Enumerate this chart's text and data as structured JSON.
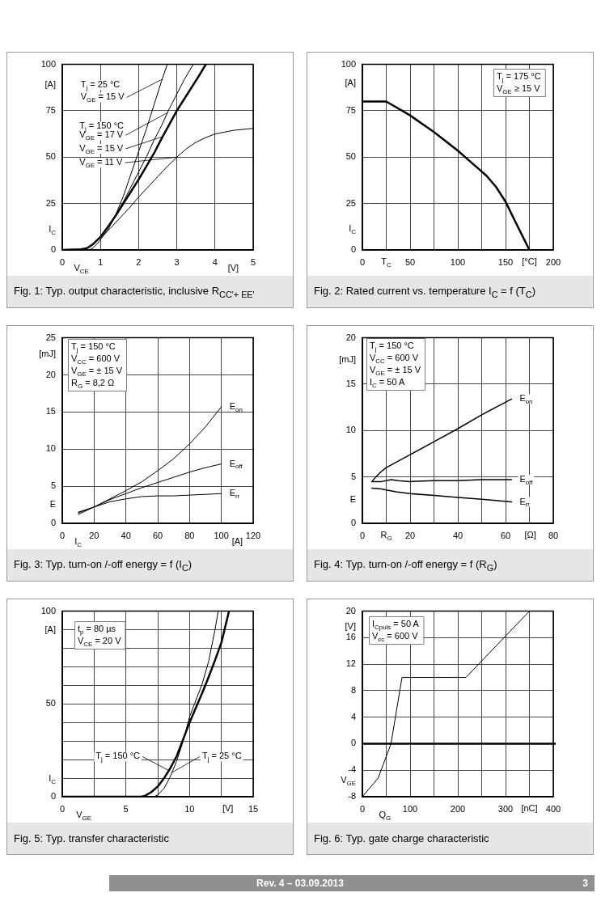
{
  "chart_data": [
    {
      "type": "line",
      "title": "Fig. 1: Typ. output characteristic, inclusive R$_{CC'+ EE'}$",
      "xlabel": "V$_{CE}$",
      "ylabel": "I$_{C}$",
      "xlim": [
        0,
        5
      ],
      "xticks": [
        0,
        1,
        2,
        3,
        4,
        5
      ],
      "ylim": [
        0,
        100
      ],
      "yticks": [
        0,
        25,
        50,
        75,
        100
      ],
      "grid": true,
      "annotations": [
        "[V]",
        "[A]",
        "T$_{j}$ = 25 °C",
        {
          "text": "V$_{GE}$ = 15 V",
          "x": 2.62,
          "y": 92
        },
        "T$_{j}$ = 150 °C",
        {
          "text": "V$_{GE}$ = 17 V",
          "x": 2.76,
          "y": 74
        },
        {
          "text": "V$_{GE}$ = 15 V",
          "x": 2.62,
          "y": 61
        },
        {
          "text": "V$_{GE}$ = 11 V",
          "x": 3,
          "y": 50
        }
      ],
      "series": [
        {
          "color": "#000000",
          "x": [
            0,
            0.7,
            0.8,
            0.9,
            1,
            1.2,
            1.4,
            1.6,
            1.8,
            2,
            2.2,
            2.4,
            2.6,
            2.75
          ],
          "values": [
            0,
            0,
            1,
            3,
            5.5,
            11,
            19,
            29,
            41,
            53,
            65,
            78,
            91,
            100
          ]
        },
        {
          "color": "#000000",
          "x": [
            0,
            0.5,
            0.65,
            0.8,
            1,
            1.2,
            1.4,
            1.6,
            1.8,
            2,
            2.2,
            2.4,
            2.6,
            2.8,
            3,
            3.2,
            3.43
          ],
          "values": [
            0,
            0.3,
            1,
            3,
            7,
            12.5,
            19,
            26,
            34,
            42,
            50,
            59,
            67,
            76,
            84,
            92,
            100
          ]
        },
        {
          "color": "#000000",
          "x": [
            0,
            0.5,
            0.65,
            0.8,
            1,
            1.2,
            1.4,
            1.6,
            1.8,
            2,
            2.2,
            2.4,
            2.6,
            2.8,
            3,
            3.2,
            3.4,
            3.6,
            3.76
          ],
          "values": [
            0,
            0.3,
            1,
            3,
            7,
            12.5,
            18.5,
            25,
            31.5,
            38,
            45,
            52,
            60,
            67.5,
            75,
            81.5,
            88,
            94.5,
            100
          ]
        },
        {
          "color": "#000000",
          "x": [
            0,
            0.5,
            0.65,
            0.8,
            1,
            1.25,
            1.5,
            1.75,
            2,
            2.25,
            2.5,
            2.75,
            3,
            3.25,
            3.5,
            3.75,
            4,
            4.5,
            5
          ],
          "values": [
            0,
            0.3,
            1,
            3,
            6.5,
            11.5,
            17,
            22.5,
            28.5,
            34,
            39.5,
            45,
            50,
            54.5,
            58,
            60.5,
            62.5,
            64.5,
            65.5
          ]
        }
      ]
    },
    {
      "type": "line",
      "title": "Fig. 2: Rated current vs. temperature I$_{C}$ = f (T$_{C}$)",
      "xlabel": "T$_{C}$",
      "ylabel": "I$_{C}$",
      "xlim": [
        0,
        200
      ],
      "xticks": [
        0,
        {
          "value": 25,
          "label": null
        },
        50,
        {
          "value": 75,
          "label": null
        },
        100,
        {
          "value": 125,
          "label": null
        },
        150,
        {
          "value": 175,
          "label": null
        },
        200
      ],
      "ylim": [
        0,
        100
      ],
      "yticks": [
        0,
        25,
        50,
        75,
        100
      ],
      "grid": true,
      "annotations": [
        "[°C]",
        "[A]",
        "T$_{j}$ = 175 °C",
        "V$_{GE}$ ≥ 15 V"
      ],
      "series": [
        {
          "color": "#000000",
          "x": [
            0,
            25,
            50,
            75,
            100,
            110,
            120,
            130,
            140,
            150,
            160,
            175
          ],
          "values": [
            80,
            80,
            72.5,
            63.5,
            53.5,
            49,
            44.5,
            40,
            34,
            26,
            15.5,
            0
          ]
        }
      ]
    },
    {
      "type": "line",
      "title": "Fig. 3: Typ. turn-on /-off energy = f (I$_{C}$)",
      "xlabel": "I$_{C}$",
      "ylabel": "E",
      "xlim": [
        0,
        120
      ],
      "xticks": [
        0,
        20,
        40,
        60,
        80,
        100,
        120
      ],
      "ylim": [
        0,
        25
      ],
      "yticks": [
        0,
        5,
        10,
        15,
        20,
        25
      ],
      "grid": true,
      "annotations": [
        "[A]",
        "[mJ]",
        "T$_{j}$ = 150 °C",
        "V$_{CC}$ = 600 V",
        "V$_{GE}$ = ± 15 V",
        "R$_{G}$ = 8,2 Ω"
      ],
      "series": [
        {
          "name": "E$_{on}$",
          "color": "#000000",
          "x": [
            10,
            20,
            30,
            40,
            50,
            60,
            70,
            80,
            90,
            100
          ],
          "values": [
            1.2,
            2.2,
            3.3,
            4.4,
            5.6,
            7.1,
            8.7,
            10.7,
            13,
            15.7
          ]
        },
        {
          "name": "E$_{off}$",
          "color": "#000000",
          "x": [
            10,
            20,
            30,
            40,
            50,
            60,
            70,
            80,
            90,
            100
          ],
          "values": [
            1.4,
            2.2,
            3.2,
            4,
            4.8,
            5.5,
            6.2,
            6.9,
            7.5,
            8
          ]
        },
        {
          "name": "E$_{rr}$",
          "color": "#000000",
          "x": [
            10,
            20,
            30,
            40,
            50,
            60,
            70,
            80,
            90,
            100
          ],
          "values": [
            1.5,
            2.2,
            2.9,
            3.3,
            3.6,
            3.7,
            3.7,
            3.8,
            3.9,
            4
          ]
        }
      ]
    },
    {
      "type": "line",
      "title": "Fig. 4: Typ. turn-on /-off energy = f (R$_{G}$)",
      "xlabel": "R$_{G}$",
      "ylabel": "E",
      "xlim": [
        0,
        80
      ],
      "xticks": [
        0,
        {
          "value": 10,
          "label": null
        },
        20,
        {
          "value": 30,
          "label": null
        },
        40,
        {
          "value": 50,
          "label": null
        },
        60,
        {
          "value": 70,
          "label": null
        },
        80
      ],
      "ylim": [
        0,
        20
      ],
      "yticks": [
        0,
        5,
        10,
        15,
        20
      ],
      "grid": true,
      "annotations": [
        "[Ω]",
        "[mJ]",
        "T$_{j}$ = 150 °C",
        "V$_{CC}$ = 600 V",
        "V$_{GE}$ = ± 15 V",
        "I$_{C}$ = 50 A"
      ],
      "series": [
        {
          "name": "E$_{on}$",
          "color": "#000000",
          "x": [
            4,
            6,
            8,
            10,
            15,
            20,
            30,
            40,
            50,
            62.5
          ],
          "values": [
            4.5,
            5.1,
            5.6,
            6,
            6.7,
            7.4,
            8.8,
            10.2,
            11.7,
            13.4
          ]
        },
        {
          "name": "E$_{off}$",
          "color": "#000000",
          "x": [
            4,
            8,
            10,
            12,
            15,
            20,
            30,
            40,
            50,
            62.5
          ],
          "values": [
            4.5,
            4.5,
            4.6,
            4.7,
            4.6,
            4.5,
            4.6,
            4.6,
            4.7,
            4.7
          ]
        },
        {
          "name": "E$_{rr}$",
          "color": "#000000",
          "x": [
            4,
            8,
            10,
            14,
            20,
            30,
            40,
            50,
            62.5
          ],
          "values": [
            3.8,
            3.7,
            3.6,
            3.4,
            3.2,
            3,
            2.8,
            2.6,
            2.3
          ]
        }
      ]
    },
    {
      "type": "line",
      "title": "Fig. 5: Typ. transfer characteristic",
      "xlabel": "V$_{GE}$",
      "ylabel": "I$_{C}$",
      "xlim": [
        0,
        15
      ],
      "xticks": [
        0,
        {
          "value": 2.5,
          "label": null
        },
        5,
        {
          "value": 7.5,
          "label": null
        },
        10,
        {
          "value": 12.5,
          "label": null
        },
        15
      ],
      "ylim": [
        0,
        100
      ],
      "yticks": [
        0,
        {
          "value": 10,
          "label": null
        },
        {
          "value": 20,
          "label": null
        },
        {
          "value": 30,
          "label": null
        },
        {
          "value": 40,
          "label": null
        },
        50,
        {
          "value": 60,
          "label": null
        },
        {
          "value": 70,
          "label": null
        },
        {
          "value": 80,
          "label": null
        },
        {
          "value": 90,
          "label": null
        },
        100
      ],
      "grid": true,
      "annotations": [
        "[V]",
        "[A]",
        "t$_{p}$ = 80 µs",
        "V$_{CE}$ = 20 V",
        {
          "text": "T$_{j}$ = 150 °C",
          "x": 8.4,
          "y": 14
        },
        {
          "text": "T$_{j}$ = 25 °C",
          "x": 8.6,
          "y": 13
        }
      ],
      "series": [
        {
          "color": "#000000",
          "x": [
            0,
            6.2,
            6.5,
            7,
            7.5,
            8,
            8.5,
            9,
            9.5,
            10,
            10.5,
            11,
            11.5,
            12,
            12.5,
            13.1
          ],
          "values": [
            0,
            0,
            0.5,
            2.5,
            5.5,
            10,
            15.5,
            22,
            31,
            40,
            48,
            56,
            64.5,
            73.5,
            83,
            100
          ]
        },
        {
          "color": "#000000",
          "x": [
            0,
            7.2,
            7.5,
            8,
            8.5,
            9,
            9.5,
            10,
            10.5,
            11,
            11.5,
            12,
            12.25
          ],
          "values": [
            0,
            0,
            1,
            4.5,
            11,
            19.5,
            30,
            43,
            52,
            61,
            73,
            90,
            100
          ]
        }
      ]
    },
    {
      "type": "line",
      "title": "Fig. 6: Typ. gate charge characteristic",
      "xlabel": "Q$_{G}$",
      "ylabel": "V$_{GE}$",
      "xlim": [
        0,
        400
      ],
      "xticks": [
        0,
        {
          "value": 50,
          "label": null
        },
        100,
        {
          "value": 150,
          "label": null
        },
        200,
        {
          "value": 250,
          "label": null
        },
        300,
        {
          "value": 350,
          "label": null
        },
        400
      ],
      "ylim": [
        -8,
        20
      ],
      "yticks": [
        -8,
        -4,
        0,
        4,
        8,
        12,
        16,
        20
      ],
      "grid": true,
      "annotations": [
        "[nC]",
        "[V]",
        "I$_{Cpuls}$ = 50 A",
        "V$_{cc}$ = 600 V"
      ],
      "ref_lines": [
        {
          "axis": "y",
          "value": 0
        }
      ],
      "series": [
        {
          "color": "#000000",
          "x": [
            0,
            33,
            60,
            83,
            217,
            350
          ],
          "values": [
            -8,
            -5.2,
            0,
            10,
            10,
            20
          ]
        }
      ]
    },
    {
      "type": "other",
      "annotations": [
        "Rev. 4 – 03.09.2013",
        "3"
      ]
    }
  ]
}
